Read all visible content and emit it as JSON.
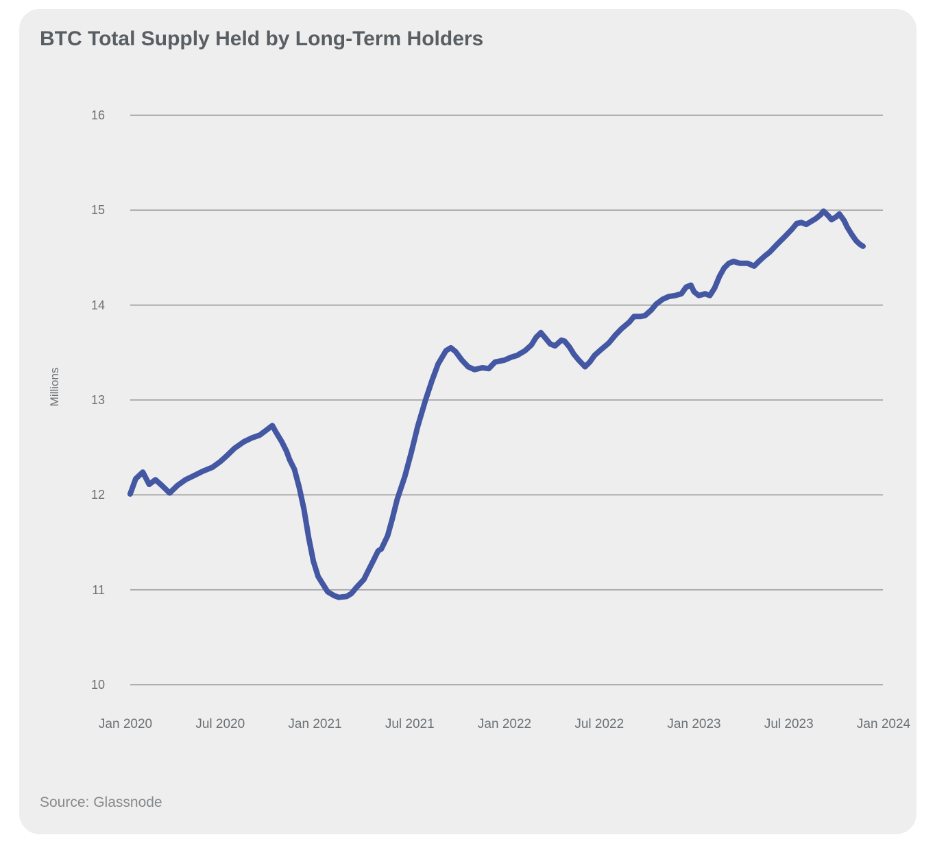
{
  "header": {
    "title": "BTC Total Supply Held by Long-Term Holders"
  },
  "footer": {
    "source": "Source: Glassnode"
  },
  "colors": {
    "card_background": "#eeeeee",
    "page_background": "#ffffff",
    "line": "#4457a2",
    "gridline": "#9a9a9a",
    "title_text": "#595e62",
    "axis_text": "#6b7074",
    "source_text": "#86898c"
  },
  "chart_data": {
    "type": "line",
    "title": "BTC Total Supply Held by Long-Term Holders",
    "xlabel": "",
    "ylabel": "Millions",
    "x_unit": "months since Jan 2020",
    "xlim": [
      0,
      48
    ],
    "ylim": [
      10,
      16
    ],
    "grid": "horizontal",
    "legend_position": "none",
    "y_ticks": [
      16,
      15,
      14,
      13,
      12,
      11,
      10
    ],
    "x_ticks": [
      {
        "t": 0,
        "label": "Jan 2020"
      },
      {
        "t": 6,
        "label": "Jul 2020"
      },
      {
        "t": 12,
        "label": "Jan 2021"
      },
      {
        "t": 18,
        "label": "Jul 2021"
      },
      {
        "t": 24,
        "label": "Jan 2022"
      },
      {
        "t": 30,
        "label": "Jul 2022"
      },
      {
        "t": 36,
        "label": "Jan 2023"
      },
      {
        "t": 42,
        "label": "Jul 2023"
      },
      {
        "t": 48,
        "label": "Jan 2024"
      }
    ],
    "series": [
      {
        "name": "BTC total supply held by long-term holders (millions)",
        "points": [
          [
            0.3,
            12.01
          ],
          [
            0.65,
            12.17
          ],
          [
            1.1,
            12.24
          ],
          [
            1.5,
            12.11
          ],
          [
            1.9,
            12.16
          ],
          [
            2.3,
            12.1
          ],
          [
            2.8,
            12.02
          ],
          [
            3.3,
            12.1
          ],
          [
            3.8,
            12.16
          ],
          [
            4.3,
            12.2
          ],
          [
            4.9,
            12.25
          ],
          [
            5.5,
            12.29
          ],
          [
            6.0,
            12.35
          ],
          [
            6.4,
            12.41
          ],
          [
            6.9,
            12.49
          ],
          [
            7.5,
            12.56
          ],
          [
            8.0,
            12.6
          ],
          [
            8.5,
            12.63
          ],
          [
            8.9,
            12.68
          ],
          [
            9.3,
            12.73
          ],
          [
            9.5,
            12.67
          ],
          [
            9.9,
            12.56
          ],
          [
            10.2,
            12.46
          ],
          [
            10.4,
            12.37
          ],
          [
            10.7,
            12.27
          ],
          [
            11.0,
            12.08
          ],
          [
            11.3,
            11.85
          ],
          [
            11.6,
            11.55
          ],
          [
            11.9,
            11.3
          ],
          [
            12.2,
            11.14
          ],
          [
            12.5,
            11.06
          ],
          [
            12.8,
            10.98
          ],
          [
            13.2,
            10.94
          ],
          [
            13.5,
            10.92
          ],
          [
            14.0,
            10.93
          ],
          [
            14.3,
            10.96
          ],
          [
            14.6,
            11.02
          ],
          [
            15.1,
            11.11
          ],
          [
            15.4,
            11.21
          ],
          [
            15.7,
            11.31
          ],
          [
            16.0,
            11.41
          ],
          [
            16.2,
            11.43
          ],
          [
            16.6,
            11.57
          ],
          [
            16.9,
            11.75
          ],
          [
            17.2,
            11.95
          ],
          [
            17.7,
            12.2
          ],
          [
            18.1,
            12.45
          ],
          [
            18.5,
            12.72
          ],
          [
            19.0,
            13.0
          ],
          [
            19.4,
            13.2
          ],
          [
            19.8,
            13.38
          ],
          [
            20.3,
            13.52
          ],
          [
            20.6,
            13.55
          ],
          [
            20.9,
            13.51
          ],
          [
            21.3,
            13.42
          ],
          [
            21.7,
            13.35
          ],
          [
            22.1,
            13.32
          ],
          [
            22.6,
            13.34
          ],
          [
            23.0,
            13.33
          ],
          [
            23.4,
            13.4
          ],
          [
            24.0,
            13.42
          ],
          [
            24.4,
            13.45
          ],
          [
            24.8,
            13.47
          ],
          [
            25.3,
            13.52
          ],
          [
            25.7,
            13.58
          ],
          [
            26.0,
            13.66
          ],
          [
            26.3,
            13.71
          ],
          [
            26.6,
            13.65
          ],
          [
            26.9,
            13.59
          ],
          [
            27.2,
            13.57
          ],
          [
            27.6,
            13.63
          ],
          [
            27.8,
            13.62
          ],
          [
            28.1,
            13.56
          ],
          [
            28.4,
            13.48
          ],
          [
            28.7,
            13.42
          ],
          [
            29.1,
            13.35
          ],
          [
            29.4,
            13.4
          ],
          [
            29.7,
            13.47
          ],
          [
            30.1,
            13.53
          ],
          [
            30.6,
            13.6
          ],
          [
            31.0,
            13.68
          ],
          [
            31.4,
            13.75
          ],
          [
            31.9,
            13.82
          ],
          [
            32.2,
            13.88
          ],
          [
            32.6,
            13.88
          ],
          [
            32.9,
            13.89
          ],
          [
            33.3,
            13.95
          ],
          [
            33.6,
            14.01
          ],
          [
            34.0,
            14.06
          ],
          [
            34.4,
            14.09
          ],
          [
            34.8,
            14.1
          ],
          [
            35.2,
            14.12
          ],
          [
            35.5,
            14.19
          ],
          [
            35.8,
            14.21
          ],
          [
            36.0,
            14.14
          ],
          [
            36.3,
            14.1
          ],
          [
            36.7,
            14.12
          ],
          [
            37.0,
            14.1
          ],
          [
            37.3,
            14.18
          ],
          [
            37.6,
            14.3
          ],
          [
            37.9,
            14.39
          ],
          [
            38.2,
            14.44
          ],
          [
            38.5,
            14.46
          ],
          [
            38.9,
            14.44
          ],
          [
            39.4,
            14.44
          ],
          [
            39.8,
            14.41
          ],
          [
            40.1,
            14.46
          ],
          [
            40.5,
            14.52
          ],
          [
            40.8,
            14.56
          ],
          [
            41.2,
            14.63
          ],
          [
            41.5,
            14.68
          ],
          [
            41.8,
            14.73
          ],
          [
            42.2,
            14.8
          ],
          [
            42.5,
            14.86
          ],
          [
            42.8,
            14.87
          ],
          [
            43.1,
            14.85
          ],
          [
            43.4,
            14.88
          ],
          [
            43.7,
            14.91
          ],
          [
            44.0,
            14.95
          ],
          [
            44.2,
            14.99
          ],
          [
            44.5,
            14.94
          ],
          [
            44.7,
            14.9
          ],
          [
            45.0,
            14.93
          ],
          [
            45.2,
            14.96
          ],
          [
            45.5,
            14.89
          ],
          [
            45.7,
            14.82
          ],
          [
            46.0,
            14.74
          ],
          [
            46.25,
            14.68
          ],
          [
            46.5,
            14.64
          ],
          [
            46.7,
            14.62
          ]
        ]
      }
    ]
  }
}
